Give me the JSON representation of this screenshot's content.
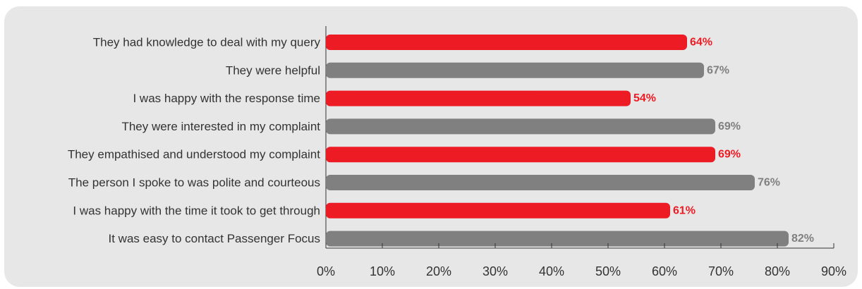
{
  "chart_data": {
    "type": "bar",
    "orientation": "horizontal",
    "title": "",
    "xlabel": "",
    "ylabel": "",
    "categories": [
      "They had knowledge to deal with my query",
      "They were helpful",
      "I was happy with the response time",
      "They were interested in my complaint",
      "They empathised and understood my complaint",
      "The person I spoke to was polite and courteous",
      "I was happy with the time it took to get through",
      "It was easy to contact Passenger Focus"
    ],
    "values": [
      64,
      67,
      54,
      69,
      69,
      76,
      61,
      82
    ],
    "value_labels": [
      "64%",
      "67%",
      "54%",
      "69%",
      "69%",
      "76%",
      "61%",
      "82%"
    ],
    "bar_colors": [
      "#ed1c24",
      "#808080",
      "#ed1c24",
      "#808080",
      "#ed1c24",
      "#808080",
      "#ed1c24",
      "#808080"
    ],
    "xlim": [
      0,
      90
    ],
    "xticks": [
      0,
      10,
      20,
      30,
      40,
      50,
      60,
      70,
      80,
      90
    ],
    "xtick_labels": [
      "0%",
      "10%",
      "20%",
      "30%",
      "40%",
      "50%",
      "60%",
      "70%",
      "80%",
      "90%"
    ],
    "grid": false,
    "legend": "none",
    "background_color": "#e7e7e8"
  }
}
